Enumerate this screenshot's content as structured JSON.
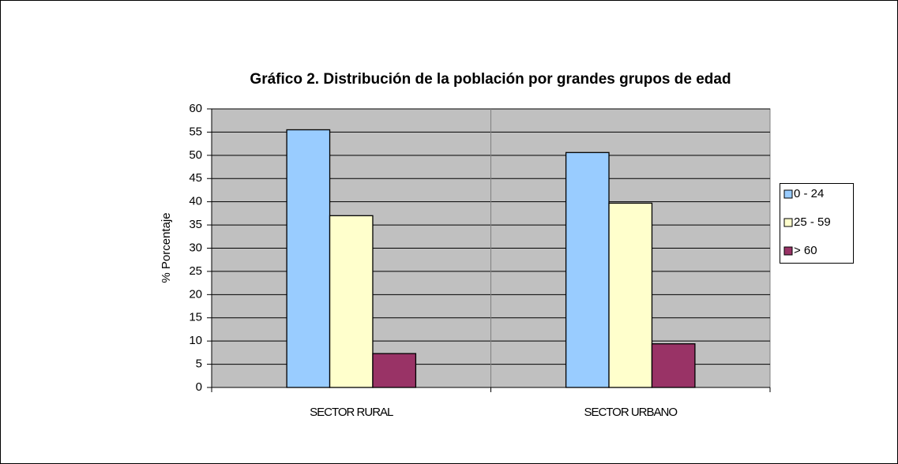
{
  "chart_data": {
    "type": "bar",
    "title": "Gráfico 2. Distribución de la población por grandes grupos de edad",
    "y_label": "% Porcentaje",
    "categories": [
      "SECTOR RURAL",
      "SECTOR URBANO"
    ],
    "series": [
      {
        "name": "0 - 24",
        "color": "#99ccff",
        "values": [
          55.5,
          50.6
        ]
      },
      {
        "name": "25 - 59",
        "color": "#ffffcc",
        "values": [
          37,
          39.7
        ]
      },
      {
        "name": "> 60",
        "color": "#993366",
        "values": [
          7.3,
          9.4
        ]
      }
    ],
    "ylim": [
      0,
      60
    ],
    "yticks": [
      0,
      5,
      10,
      15,
      20,
      25,
      30,
      35,
      40,
      45,
      50,
      55,
      60
    ],
    "grid": true,
    "legend": "right"
  }
}
